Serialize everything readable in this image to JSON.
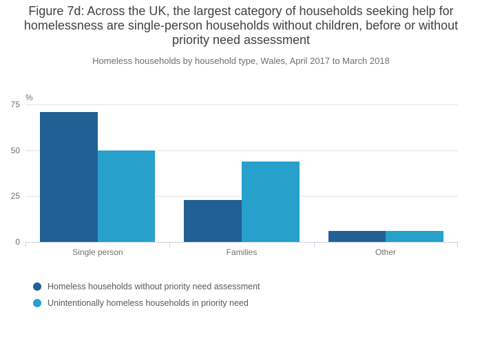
{
  "title": "Figure 7d: Across the UK, the largest category of households seeking help for homelessness are single-person households without children, before or without priority need assessment",
  "subtitle": "Homeless households by household type, Wales, April 2017 to March 2018",
  "chart_data": {
    "type": "bar",
    "categories": [
      "Single person",
      "Families",
      "Other"
    ],
    "series": [
      {
        "name": "Homeless households without priority need assessment",
        "color": "#206095",
        "values": [
          71,
          23,
          6
        ]
      },
      {
        "name": "Unintentionally homeless households in priority need",
        "color": "#27A0CC",
        "values": [
          50,
          44,
          6
        ]
      }
    ],
    "unit_label": "%",
    "y_ticks": [
      75,
      50,
      25,
      0
    ],
    "ylim": [
      0,
      75
    ],
    "grid": true,
    "legend_position": "bottom-left"
  },
  "colors": {
    "series_dark": "#206095",
    "series_light": "#27A0CC",
    "gridline": "#e3e3e3",
    "axis_line": "#c8d4e0",
    "title_text": "#414042",
    "subtitle_text": "#6e6e6f",
    "axis_text": "#707071",
    "legend_text": "#595959"
  }
}
